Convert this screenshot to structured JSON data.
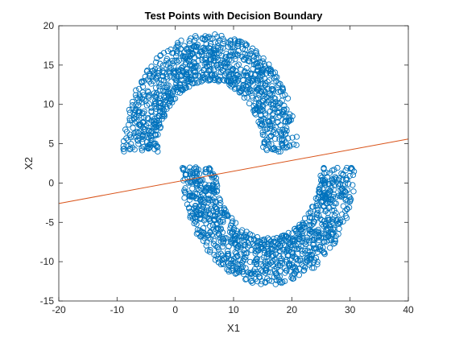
{
  "chart_data": {
    "type": "scatter",
    "title": "Test Points with Decision Boundary",
    "xlabel": "X1",
    "ylabel": "X2",
    "xlim": [
      -20,
      40
    ],
    "ylim": [
      -15,
      20
    ],
    "xticks": [
      -20,
      -10,
      0,
      10,
      20,
      30,
      40
    ],
    "yticks": [
      -15,
      -10,
      -5,
      0,
      5,
      10,
      15,
      20
    ],
    "grid": false,
    "box": true,
    "marker_color": "#0072BD",
    "line_color": "#D95319",
    "series": [
      {
        "type": "scatter",
        "marker": "circle-open",
        "shape": "two interleaving half-moons: upper arc centred near (6, 4) opening downward, lower arc centred near (16, 2) opening upward",
        "upper_moon": {
          "center": [
            6,
            4
          ],
          "radius": 12,
          "width": 6,
          "angle_range_deg": [
            0,
            180
          ]
        },
        "lower_moon": {
          "center": [
            16,
            2
          ],
          "radius": 12,
          "width": 6,
          "angle_range_deg": [
            180,
            360
          ]
        },
        "n_points_per_moon": 1000
      },
      {
        "type": "line",
        "x": [
          -20,
          40
        ],
        "y": [
          -2.6,
          5.6
        ]
      }
    ]
  }
}
